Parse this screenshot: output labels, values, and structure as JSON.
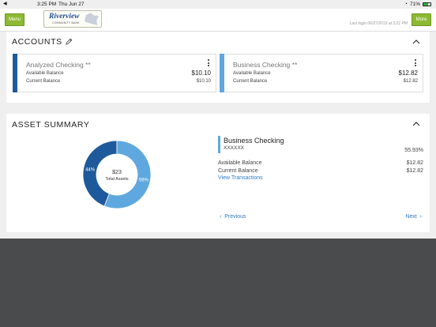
{
  "statusbar": {
    "back": "◀",
    "time": "3:25 PM",
    "date": "Thu Jun 27",
    "battery": "71%"
  },
  "header": {
    "menu_label": "Menu",
    "more_label": "More",
    "logo_name": "Riverview",
    "logo_sub": "COMMUNITY BANK",
    "last_login": "Last login 06/27/2019 at 3:21 PM"
  },
  "accounts": {
    "title": "ACCOUNTS",
    "tiles": [
      {
        "name": "Analyzed Checking **",
        "available_label": "Available Balance",
        "available": "$10.10",
        "current_label": "Current Balance",
        "current": "$10.10",
        "color": "#1e5a9b"
      },
      {
        "name": "Business Checking **",
        "available_label": "Available Balance",
        "available": "$12.82",
        "current_label": "Current Balance",
        "current": "$12.82",
        "color": "#5fa8df"
      }
    ]
  },
  "asset_summary": {
    "title": "ASSET SUMMARY",
    "total": "$23",
    "total_label": "Total Assets",
    "slices": [
      {
        "label": "44%",
        "value": 44,
        "color": "#1e5a9b"
      },
      {
        "label": "56%",
        "value": 56,
        "color": "#5fa8df"
      }
    ],
    "selected": {
      "name": "Business Checking",
      "number": "XXXXXX",
      "percent": "55.93%",
      "available_label": "Available Balance",
      "available": "$12.82",
      "current_label": "Current Balance",
      "current": "$12.82",
      "link": "View Transactions"
    },
    "prev_label": "Previous",
    "next_label": "Next"
  }
}
